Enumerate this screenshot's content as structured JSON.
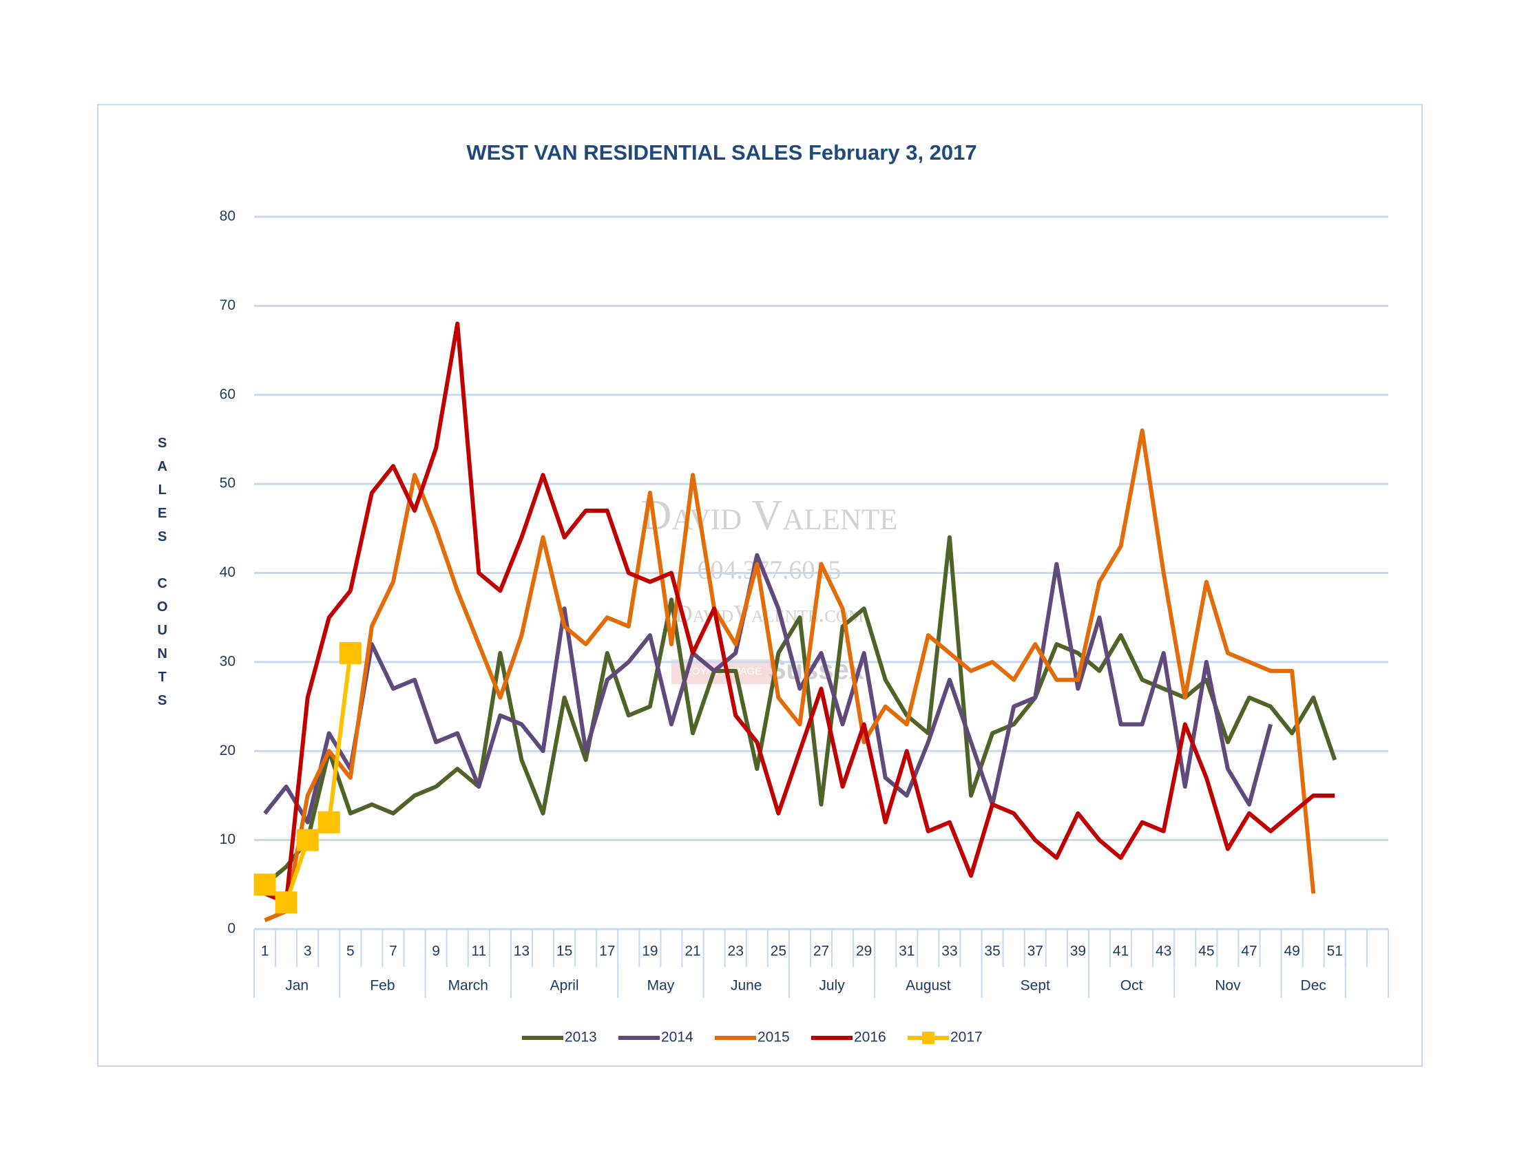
{
  "chart_data": {
    "type": "line",
    "title": "WEST VAN RESIDENTIAL SALES February 3, 2017",
    "y_label": "SALES COUNTS",
    "categories": [
      1,
      null,
      3,
      null,
      5,
      null,
      7,
      null,
      9,
      null,
      11,
      null,
      13,
      null,
      15,
      null,
      17,
      null,
      19,
      null,
      21,
      null,
      23,
      null,
      25,
      null,
      27,
      null,
      29,
      null,
      31,
      null,
      33,
      null,
      35,
      null,
      37,
      null,
      39,
      null,
      41,
      null,
      43,
      null,
      45,
      null,
      47,
      null,
      49,
      null,
      51,
      null,
      null
    ],
    "month_groups": [
      {
        "label": "Jan",
        "span": 4
      },
      {
        "label": "Feb",
        "span": 4
      },
      {
        "label": "March",
        "span": 4
      },
      {
        "label": "April",
        "span": 5
      },
      {
        "label": "May",
        "span": 4
      },
      {
        "label": "June",
        "span": 4
      },
      {
        "label": "July",
        "span": 4
      },
      {
        "label": "August",
        "span": 5
      },
      {
        "label": "Sept",
        "span": 5
      },
      {
        "label": "Oct",
        "span": 4
      },
      {
        "label": "Nov",
        "span": 5
      },
      {
        "label": "Dec",
        "span": 3
      }
    ],
    "ylim": [
      0,
      80
    ],
    "yticks": [
      0,
      10,
      20,
      30,
      40,
      50,
      60,
      70,
      80
    ],
    "grid": true,
    "legend": "bottom",
    "series": [
      {
        "name": "2013",
        "color": "#4f6228",
        "values": [
          5,
          7,
          10,
          20,
          13,
          14,
          13,
          15,
          16,
          18,
          16,
          31,
          19,
          13,
          26,
          19,
          31,
          24,
          25,
          37,
          22,
          29,
          29,
          18,
          31,
          35,
          14,
          34,
          36,
          28,
          24,
          22,
          44,
          15,
          22,
          23,
          26,
          32,
          31,
          29,
          33,
          28,
          27,
          26,
          28,
          21,
          26,
          25,
          22,
          26,
          19,
          null,
          null
        ]
      },
      {
        "name": "2014",
        "color": "#604a7b",
        "values": [
          13,
          16,
          12,
          22,
          18,
          32,
          27,
          28,
          21,
          22,
          16,
          24,
          23,
          20,
          36,
          20,
          28,
          30,
          33,
          23,
          31,
          29,
          31,
          42,
          36,
          27,
          31,
          23,
          31,
          17,
          15,
          21,
          28,
          21,
          14,
          25,
          26,
          41,
          27,
          35,
          23,
          23,
          31,
          16,
          30,
          18,
          14,
          23,
          null,
          null,
          null,
          null,
          null
        ]
      },
      {
        "name": "2015",
        "color": "#e36c09",
        "values": [
          1,
          2,
          15,
          20,
          17,
          34,
          39,
          51,
          45,
          38,
          32,
          26,
          33,
          44,
          34,
          32,
          35,
          34,
          49,
          32,
          51,
          36,
          32,
          41,
          26,
          23,
          41,
          36,
          21,
          25,
          23,
          33,
          31,
          29,
          30,
          28,
          32,
          28,
          28,
          39,
          43,
          56,
          40,
          26,
          39,
          31,
          30,
          29,
          29,
          4,
          null,
          null,
          null
        ]
      },
      {
        "name": "2016",
        "color": "#c00000",
        "values": [
          4,
          3,
          26,
          35,
          38,
          49,
          52,
          47,
          54,
          68,
          40,
          38,
          44,
          51,
          44,
          47,
          47,
          40,
          39,
          40,
          31,
          36,
          24,
          21,
          13,
          20,
          27,
          16,
          23,
          12,
          20,
          11,
          12,
          6,
          14,
          13,
          10,
          8,
          13,
          10,
          8,
          12,
          11,
          23,
          17,
          9,
          13,
          11,
          13,
          15,
          15,
          null,
          null
        ]
      },
      {
        "name": "2017",
        "color": "#ffc000",
        "marker": "square",
        "values": [
          5,
          3,
          10,
          12,
          31,
          null,
          null,
          null,
          null,
          null,
          null,
          null,
          null,
          null,
          null,
          null,
          null,
          null,
          null,
          null,
          null,
          null,
          null,
          null,
          null,
          null,
          null,
          null,
          null,
          null,
          null,
          null,
          null,
          null,
          null,
          null,
          null,
          null,
          null,
          null,
          null,
          null,
          null,
          null,
          null,
          null,
          null,
          null,
          null,
          null,
          null,
          null,
          null
        ]
      }
    ]
  },
  "watermark": {
    "name": "David Valente",
    "phone": "604.377.6015",
    "site": "DavidValente.com",
    "brand": "ROYAL LEPAGE",
    "office": "Sussex"
  }
}
